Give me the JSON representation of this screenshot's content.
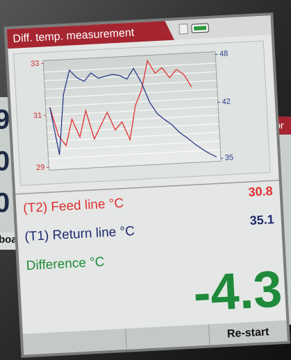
{
  "background": {
    "left_panel": [
      "9",
      "0",
      "0",
      "board"
    ],
    "right_panel": "Cor"
  },
  "screen": {
    "title": "Diff. temp. measurement",
    "chart": {
      "type": "line",
      "ylim": [
        29,
        33
      ],
      "yticks": [
        29,
        31,
        33
      ],
      "y2lim": [
        35,
        48
      ],
      "y2ticks": [
        35,
        42,
        48
      ],
      "series": [
        {
          "color": "#e03030",
          "values": [
            31.3,
            30.2,
            29.8,
            30.8,
            30.1,
            31.1,
            30.0,
            30.5,
            31.0,
            30.3,
            30.6,
            29.9,
            31.2,
            31.8,
            32.9,
            32.4,
            32.6,
            32.2,
            32.5,
            32.3,
            31.8,
            null,
            null,
            null
          ]
        },
        {
          "color": "#2a3a8a",
          "axis": "y2",
          "values": [
            42.5,
            36.5,
            44,
            47,
            46,
            45.5,
            46.5,
            45.8,
            46,
            46.2,
            46,
            45.5,
            46.8,
            45,
            42.5,
            41,
            40.2,
            39.5,
            38.5,
            37.8,
            37,
            36.3,
            35.7,
            35.2
          ]
        }
      ]
    },
    "readings": [
      {
        "label": "(T2) Feed line °C",
        "value": 30.8,
        "color": "#e03030"
      },
      {
        "label": "(T1) Return line °C",
        "value": 35.1,
        "color": "#1e2a6e"
      },
      {
        "label": "Difference °C",
        "value": -4.3,
        "color": "#1f8a3a"
      }
    ],
    "softkey": "Re-start"
  }
}
